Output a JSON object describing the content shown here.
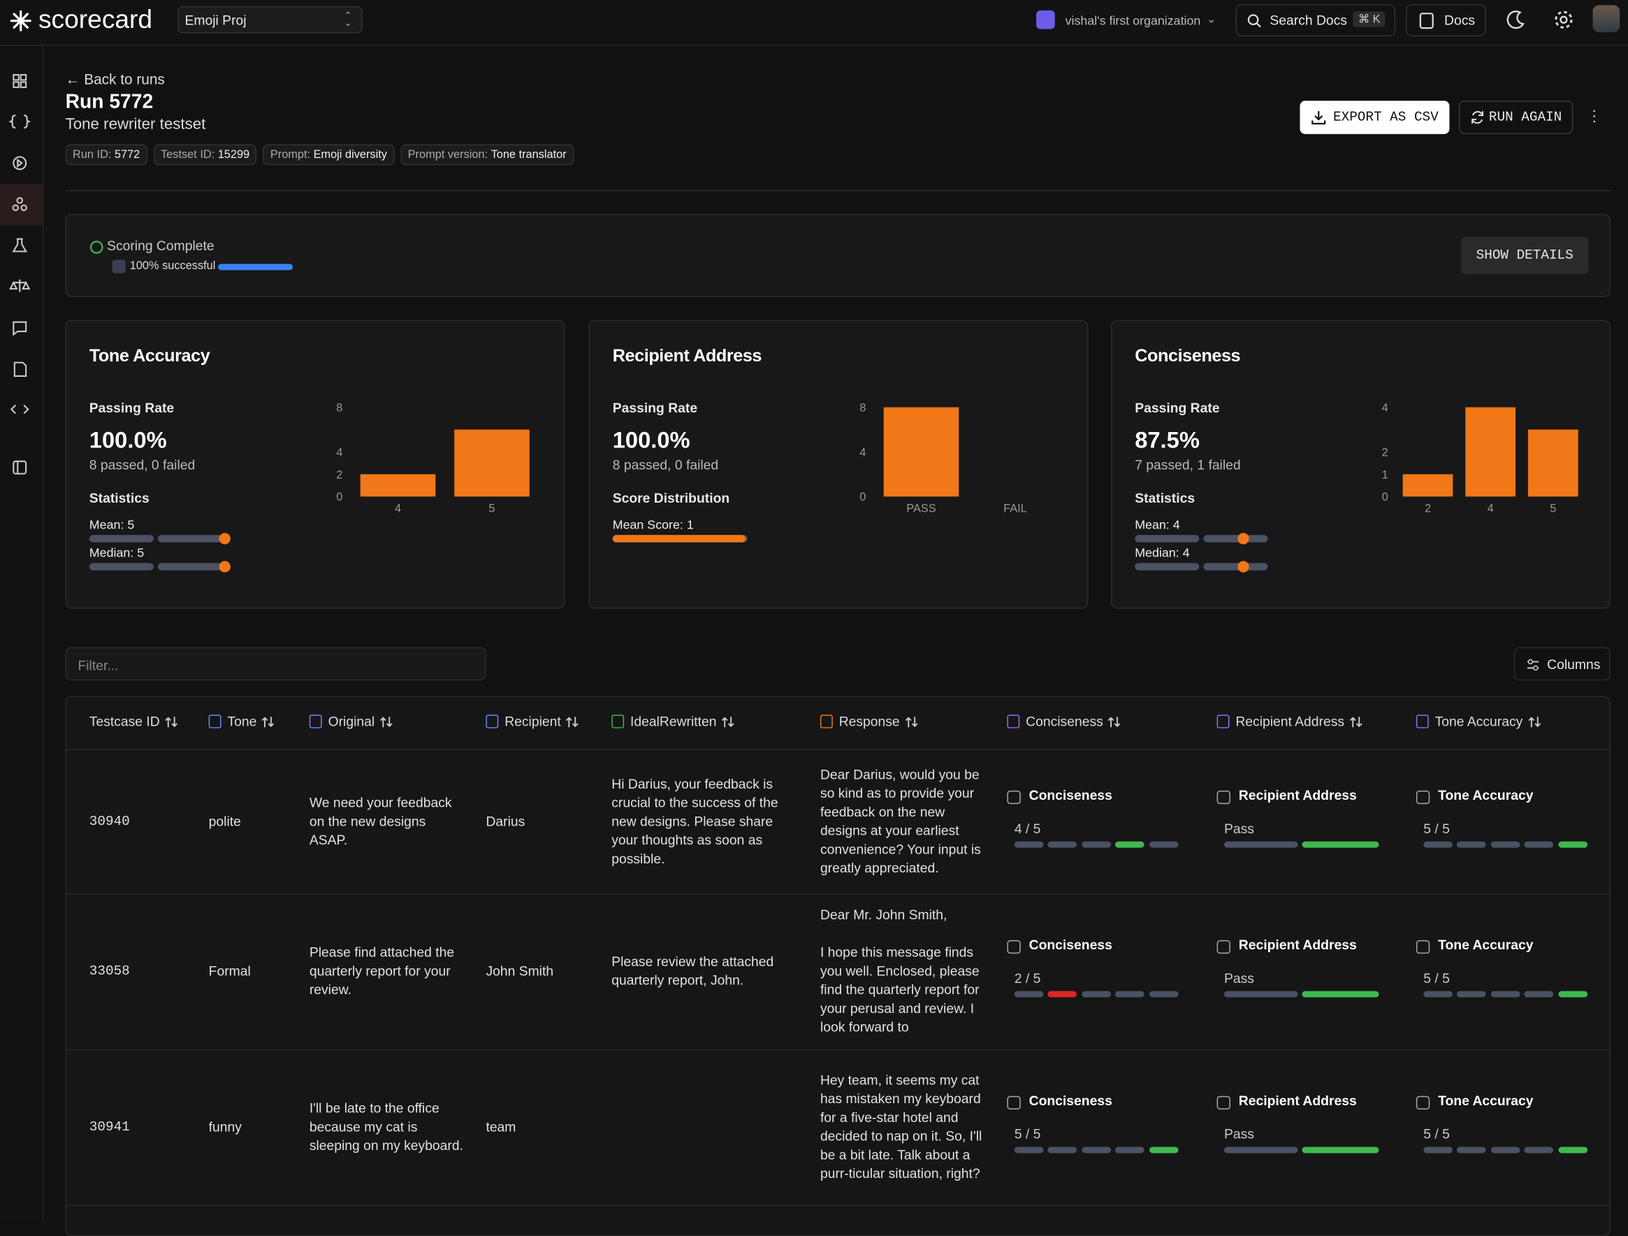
{
  "app": {
    "brand": "scorecard",
    "project": "Emoji Proj",
    "org": "vishal's first organization",
    "search": "Search Docs",
    "shortcut": "⌘ K",
    "docs": "Docs"
  },
  "run": {
    "back": "Back to runs",
    "title": "Run 5772",
    "subtitle": "Tone rewriter testset",
    "tags": [
      {
        "label": "Run ID:",
        "value": "5772"
      },
      {
        "label": "Testset ID:",
        "value": "15299"
      },
      {
        "label": "Prompt:",
        "value": "Emoji diversity"
      },
      {
        "label": "Prompt version:",
        "value": "Tone translator"
      }
    ],
    "export": "EXPORT AS CSV",
    "rerun": "RUN AGAIN"
  },
  "scoring": {
    "status": "Scoring Complete",
    "success": "100% successful",
    "percent": 100,
    "button": "SHOW DETAILS"
  },
  "metrics": [
    {
      "title": "Tone Accuracy",
      "rate_label": "Passing Rate",
      "rate": "100.0%",
      "counts": "8 passed, 0 failed",
      "section": "Statistics",
      "stats": [
        {
          "label": "Mean:",
          "value": 5
        },
        {
          "label": "Median:",
          "value": 5
        }
      ],
      "chart": {
        "type": "bar",
        "categories": [
          "4",
          "5"
        ],
        "values": [
          2,
          6
        ],
        "color": "#f07818",
        "ylim": [
          0,
          8
        ],
        "yticks": [
          0,
          2,
          4,
          8
        ]
      }
    },
    {
      "title": "Recipient Address",
      "rate_label": "Passing Rate",
      "rate": "100.0%",
      "counts": "8 passed, 0 failed",
      "section": "Score Distribution",
      "stats": [
        {
          "label": "Mean Score:",
          "value": 1
        }
      ],
      "chart": {
        "type": "bar",
        "categories": [
          "PASS",
          "FAIL"
        ],
        "values": [
          8,
          0
        ],
        "color": "#f07818",
        "ylim": [
          0,
          8
        ],
        "yticks": [
          0,
          4,
          8
        ]
      }
    },
    {
      "title": "Conciseness",
      "rate_label": "Passing Rate",
      "rate": "87.5%",
      "counts": "7 passed, 1 failed",
      "section": "Statistics",
      "stats": [
        {
          "label": "Mean:",
          "value": 4
        },
        {
          "label": "Median:",
          "value": 4
        }
      ],
      "chart": {
        "type": "bar",
        "categories": [
          "2",
          "4",
          "5"
        ],
        "values": [
          1,
          4,
          3
        ],
        "color": "#f07818",
        "ylim": [
          0,
          4
        ],
        "yticks": [
          0,
          1,
          2,
          4
        ]
      }
    }
  ],
  "filter": "Filter...",
  "columns_button": "Columns",
  "table": {
    "columns": [
      "Testcase ID",
      "Tone",
      "Original",
      "Recipient",
      "IdealRewritten",
      "Response",
      "Conciseness",
      "Recipient Address",
      "Tone Accuracy"
    ],
    "rows": [
      {
        "id": "30940",
        "tone": "polite",
        "original": "We need your feedback on the new designs ASAP.",
        "recipient": "Darius",
        "ideal": "Hi Darius, your feedback is crucial to the success of the new designs. Please share your thoughts as soon as possible.",
        "response": "Dear Darius, would you be so kind as to provide your feedback on the new designs at your earliest convenience? Your input is greatly appreciated.",
        "scores": [
          {
            "name": "Conciseness",
            "label": "4 / 5",
            "value": 4,
            "color": "#3fb950"
          },
          {
            "name": "Recipient Address",
            "label": "Pass",
            "color": "#3fb950"
          },
          {
            "name": "Tone Accuracy",
            "label": "5 / 5",
            "value": 5,
            "color": "#3fb950"
          }
        ]
      },
      {
        "id": "33058",
        "tone": "Formal",
        "original": "Please find attached the quarterly report for your review.",
        "recipient": "John Smith",
        "ideal": "Please review the attached quarterly report, John.",
        "response": "Dear Mr. John Smith,\n\nI hope this message finds you well. Enclosed, please find the quarterly report for your perusal and review. I look forward to",
        "scores": [
          {
            "name": "Conciseness",
            "label": "2 / 5",
            "value": 2,
            "color": "#dc2626"
          },
          {
            "name": "Recipient Address",
            "label": "Pass",
            "color": "#3fb950"
          },
          {
            "name": "Tone Accuracy",
            "label": "5 / 5",
            "value": 5,
            "color": "#3fb950"
          }
        ]
      },
      {
        "id": "30941",
        "tone": "funny",
        "original": "I'll be late to the office because my cat is sleeping on my keyboard.",
        "recipient": "team",
        "response": "Hey team, it seems my cat has mistaken my keyboard for a five-star hotel and decided to nap on it. So, I'll be a bit late. Talk about a purr-ticular situation, right?",
        "scores": [
          {
            "name": "Conciseness",
            "label": "5 / 5",
            "value": 5,
            "color": "#3fb950"
          },
          {
            "name": "Recipient Address",
            "label": "Pass",
            "color": "#3fb950"
          },
          {
            "name": "Tone Accuracy",
            "label": "5 / 5",
            "value": 5,
            "color": "#3fb950"
          }
        ]
      }
    ]
  }
}
